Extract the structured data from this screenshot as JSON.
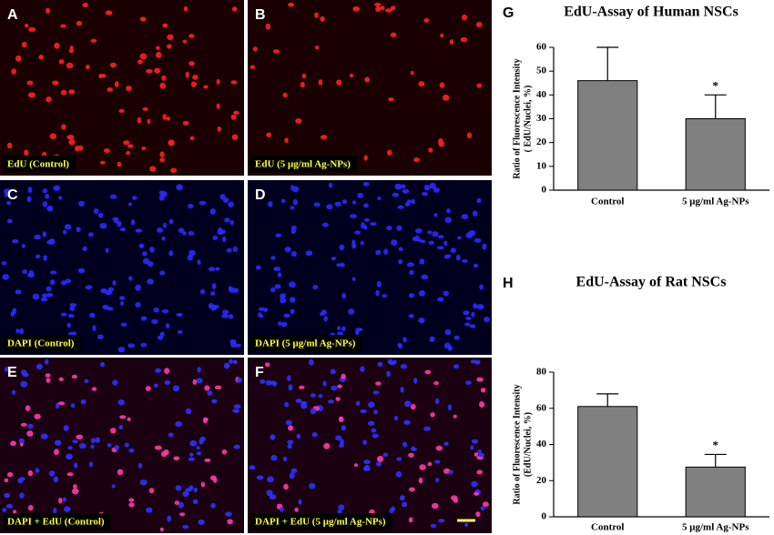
{
  "panels": [
    {
      "letter": "A",
      "caption": "EdU (Control)"
    },
    {
      "letter": "B",
      "caption": "EdU (5 μg/ml Ag-NPs)"
    },
    {
      "letter": "C",
      "caption": "DAPI (Control)"
    },
    {
      "letter": "D",
      "caption": "DAPI (5 μg/ml Ag-NPs)"
    },
    {
      "letter": "E",
      "caption": "DAPI + EdU (Control)"
    },
    {
      "letter": "F",
      "caption": "DAPI + EdU (5 μg/ml Ag-NPs)"
    }
  ],
  "chart_data": [
    {
      "type": "bar",
      "panel_label": "G",
      "title": "EdU-Assay of Human NSCs",
      "ylabel": [
        "Ratio of Fluorescence Intensity",
        "( EdU/Nuclei, %)"
      ],
      "categories": [
        "Control",
        "5 μg/ml Ag-NPs"
      ],
      "values": [
        46,
        30
      ],
      "errors": [
        14,
        10
      ],
      "annotations": [
        null,
        "*"
      ],
      "color": "#808080",
      "ylim": [
        0,
        60
      ],
      "yticks": [
        0,
        10,
        20,
        30,
        40,
        50,
        60
      ]
    },
    {
      "type": "bar",
      "panel_label": "H",
      "title": "EdU-Assay of Rat NSCs",
      "ylabel": [
        "Ratio of Fluorescence Intensity",
        "(EdU/Nuclei, %)"
      ],
      "categories": [
        "Control",
        "5 μg/ml Ag-NPs"
      ],
      "values": [
        61,
        27.5
      ],
      "errors": [
        7,
        7
      ],
      "annotations": [
        null,
        "*"
      ],
      "color": "#808080",
      "ylim": [
        0,
        80
      ],
      "yticks": [
        0,
        20,
        40,
        60,
        80
      ]
    }
  ]
}
